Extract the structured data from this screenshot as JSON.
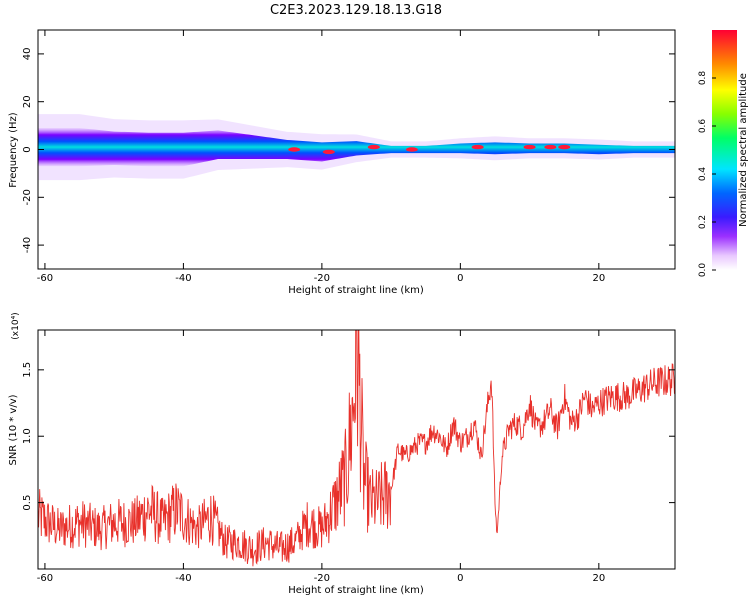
{
  "title": "C2E3.2023.129.18.13.G18",
  "colors": {
    "snr_line": "#e8302a",
    "band_core": "#00e0e0",
    "band_outer": "#7b00ff"
  },
  "chart_data": [
    {
      "type": "heatmap",
      "xlabel": "Height of straight line (km)",
      "ylabel": "Frequency (Hz)",
      "xlim": [
        -61,
        31
      ],
      "ylim": [
        -50,
        50
      ],
      "x_ticks": [
        "-60",
        "-40",
        "-20",
        "0",
        "20"
      ],
      "x_tick_values": [
        -60,
        -40,
        -20,
        0,
        20
      ],
      "y_ticks": [
        "-40",
        "-20",
        "0",
        "20",
        "40"
      ],
      "y_tick_values": [
        -40,
        -20,
        0,
        20,
        40
      ],
      "colorbar": {
        "label": "Normalized spectral amplitude",
        "range": [
          0,
          1
        ],
        "ticks": [
          "0.0",
          "0.2",
          "0.4",
          "0.6",
          "0.8"
        ],
        "tick_values": [
          0.0,
          0.2,
          0.4,
          0.6,
          0.8
        ]
      },
      "band": {
        "x": [
          -60,
          -55,
          -50,
          -45,
          -40,
          -35,
          -30,
          -25,
          -20,
          -15,
          -10,
          -5,
          0,
          5,
          10,
          15,
          20,
          25,
          30
        ],
        "center_hz": [
          1,
          1,
          0.5,
          0,
          0,
          2,
          1,
          0,
          -1,
          0.5,
          0,
          0,
          0.5,
          0.5,
          0.5,
          0.5,
          0,
          0,
          0
        ],
        "halfwidth_hz": [
          8,
          8,
          7,
          7,
          7,
          6,
          5,
          4,
          4,
          3,
          1.5,
          1.5,
          2,
          2.5,
          2,
          2,
          2,
          1.5,
          1.5
        ]
      },
      "peaks": [
        {
          "x": -24,
          "f": 0
        },
        {
          "x": -19,
          "f": -1
        },
        {
          "x": -12.5,
          "f": 1
        },
        {
          "x": -7,
          "f": 0
        },
        {
          "x": 2.5,
          "f": 1
        },
        {
          "x": 10,
          "f": 1
        },
        {
          "x": 13,
          "f": 1
        },
        {
          "x": 15,
          "f": 1
        }
      ]
    },
    {
      "type": "line",
      "xlabel": "Height of straight line (km)",
      "ylabel": "SNR (10 * v/v)",
      "y_scale_label": "(x10⁴)",
      "xlim": [
        -61,
        31
      ],
      "ylim": [
        0,
        1.8
      ],
      "x_ticks": [
        "-60",
        "-40",
        "-20",
        "0",
        "20"
      ],
      "x_tick_values": [
        -60,
        -40,
        -20,
        0,
        20
      ],
      "y_ticks": [
        "0.5",
        "1.0",
        "1.5"
      ],
      "y_tick_values": [
        0.5,
        1.0,
        1.5
      ],
      "series": [
        {
          "name": "SNR",
          "x": [
            -61,
            -58,
            -55,
            -52,
            -50,
            -47,
            -45,
            -43,
            -41,
            -38,
            -36,
            -34,
            -32,
            -30,
            -28,
            -26,
            -24,
            -22,
            -20,
            -18,
            -16.5,
            -15.5,
            -15,
            -14.5,
            -14,
            -13,
            -12,
            -11,
            -10,
            -9,
            -8,
            -7,
            -6,
            -5,
            -4,
            -3,
            -2,
            -1,
            0,
            1,
            2,
            3,
            4,
            4.5,
            5,
            5.3,
            6,
            7,
            8,
            9,
            10,
            11,
            12,
            13,
            14,
            15,
            16,
            17,
            18,
            19,
            20,
            22,
            24,
            26,
            28,
            30,
            31
          ],
          "y": [
            0.4,
            0.3,
            0.35,
            0.3,
            0.35,
            0.35,
            0.45,
            0.35,
            0.45,
            0.3,
            0.4,
            0.2,
            0.2,
            0.15,
            0.2,
            0.15,
            0.2,
            0.35,
            0.3,
            0.5,
            0.7,
            1.2,
            1.7,
            1.3,
            0.7,
            0.5,
            0.5,
            0.55,
            0.6,
            0.9,
            0.85,
            0.9,
            0.95,
            0.95,
            1.05,
            1.0,
            0.9,
            1.1,
            0.95,
            1.0,
            1.1,
            0.85,
            1.25,
            1.45,
            0.5,
            0.25,
            0.85,
            1.05,
            1.1,
            1.05,
            1.25,
            1.05,
            1.1,
            1.2,
            1.05,
            1.3,
            1.1,
            1.15,
            1.3,
            1.2,
            1.25,
            1.3,
            1.3,
            1.35,
            1.4,
            1.42,
            1.43
          ]
        }
      ]
    }
  ]
}
